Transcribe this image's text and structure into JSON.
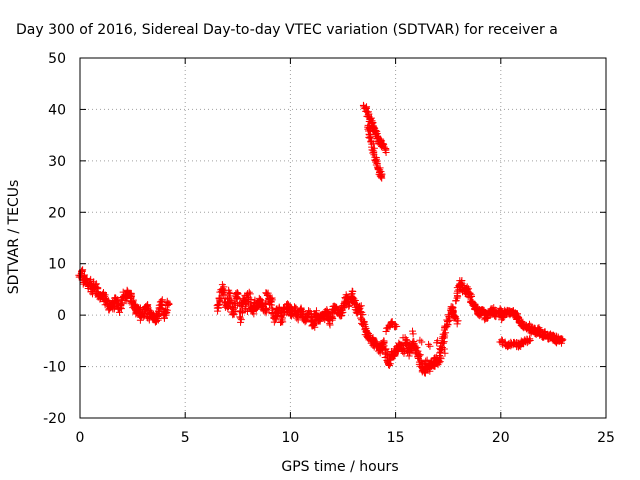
{
  "chart_data": {
    "type": "scatter",
    "title": "Day 300 of 2016, Sidereal Day-to-day VTEC variation (SDTVAR) for receiver a",
    "xlabel": "GPS time / hours",
    "ylabel": "SDTVAR / TECUs",
    "xlim": [
      0,
      25
    ],
    "ylim": [
      -20,
      50
    ],
    "x_ticks": [
      0,
      5,
      10,
      15,
      20,
      25
    ],
    "y_ticks": [
      -20,
      -10,
      0,
      10,
      20,
      30,
      40,
      50
    ],
    "grid": true,
    "marker": "+",
    "series_color": "#ff0000",
    "series": [
      {
        "segments": [
          {
            "points": [
              [
                0.0,
                7.5
              ],
              [
                0.1,
                8.5
              ],
              [
                0.2,
                6.5
              ],
              [
                0.3,
                7.0
              ],
              [
                0.4,
                5.5
              ],
              [
                0.5,
                6.5
              ],
              [
                0.6,
                4.5
              ],
              [
                0.7,
                6.0
              ],
              [
                0.8,
                5.0
              ],
              [
                0.9,
                4.0
              ],
              [
                1.0,
                3.5
              ],
              [
                1.1,
                4.5
              ],
              [
                1.2,
                2.5
              ],
              [
                1.3,
                3.0
              ],
              [
                1.4,
                1.0
              ],
              [
                1.5,
                2.0
              ],
              [
                1.6,
                1.5
              ],
              [
                1.7,
                3.5
              ],
              [
                1.8,
                2.0
              ],
              [
                1.9,
                1.0
              ],
              [
                2.0,
                2.5
              ],
              [
                2.1,
                4.0
              ],
              [
                2.2,
                3.0
              ],
              [
                2.3,
                4.5
              ],
              [
                2.4,
                4.0
              ],
              [
                2.5,
                2.5
              ],
              [
                2.6,
                1.5
              ],
              [
                2.7,
                0.5
              ],
              [
                2.8,
                1.5
              ],
              [
                2.9,
                -0.5
              ],
              [
                3.0,
                0.0
              ],
              [
                3.1,
                1.0
              ],
              [
                3.2,
                2.0
              ],
              [
                3.3,
                -1.0
              ],
              [
                3.4,
                0.5
              ],
              [
                3.5,
                -0.5
              ],
              [
                3.6,
                -1.0
              ],
              [
                3.7,
                0.0
              ],
              [
                3.8,
                1.5
              ],
              [
                3.9,
                2.5
              ],
              [
                4.0,
                -0.5
              ],
              [
                4.1,
                1.0
              ],
              [
                4.2,
                2.5
              ]
            ]
          },
          {
            "points": [
              [
                6.5,
                1.0
              ],
              [
                6.6,
                2.5
              ],
              [
                6.7,
                4.0
              ],
              [
                6.8,
                5.5
              ],
              [
                6.9,
                3.0
              ],
              [
                7.0,
                1.5
              ],
              [
                7.1,
                4.5
              ],
              [
                7.2,
                2.0
              ],
              [
                7.3,
                0.0
              ],
              [
                7.4,
                3.5
              ],
              [
                7.5,
                4.5
              ],
              [
                7.6,
                -1.0
              ],
              [
                7.7,
                2.0
              ],
              [
                7.8,
                3.5
              ],
              [
                7.9,
                1.0
              ],
              [
                8.0,
                4.5
              ],
              [
                8.1,
                1.5
              ],
              [
                8.2,
                0.5
              ],
              [
                8.3,
                2.5
              ],
              [
                8.4,
                1.0
              ],
              [
                8.5,
                3.0
              ],
              [
                8.6,
                2.0
              ],
              [
                8.7,
                1.5
              ],
              [
                8.8,
                0.5
              ],
              [
                8.9,
                4.5
              ],
              [
                9.0,
                2.5
              ],
              [
                9.1,
                3.5
              ],
              [
                9.2,
                0.0
              ],
              [
                9.3,
                -1.0
              ],
              [
                9.4,
                1.5
              ],
              [
                9.5,
                0.5
              ],
              [
                9.6,
                -1.5
              ],
              [
                9.7,
                1.5
              ],
              [
                9.8,
                0.5
              ],
              [
                9.9,
                2.0
              ],
              [
                10.0,
                1.0
              ],
              [
                10.1,
                0.0
              ],
              [
                10.2,
                1.5
              ],
              [
                10.3,
                -0.5
              ],
              [
                10.4,
                0.5
              ],
              [
                10.5,
                1.0
              ],
              [
                10.6,
                0.0
              ],
              [
                10.7,
                -1.0
              ],
              [
                10.8,
                -0.5
              ],
              [
                10.9,
                0.5
              ],
              [
                11.0,
                -1.5
              ],
              [
                11.1,
                -2.0
              ],
              [
                11.2,
                0.5
              ],
              [
                11.3,
                -0.5
              ],
              [
                11.4,
                -1.0
              ],
              [
                11.5,
                0.0
              ],
              [
                11.6,
                -0.5
              ],
              [
                11.7,
                1.0
              ],
              [
                11.8,
                0.0
              ],
              [
                11.9,
                -1.5
              ],
              [
                12.0,
                0.5
              ],
              [
                12.1,
                1.5
              ],
              [
                12.2,
                1.0
              ],
              [
                12.3,
                0.5
              ],
              [
                12.4,
                0.0
              ],
              [
                12.5,
                1.5
              ],
              [
                12.6,
                2.5
              ],
              [
                12.7,
                3.5
              ],
              [
                12.8,
                2.0
              ],
              [
                12.9,
                4.5
              ],
              [
                13.0,
                3.0
              ],
              [
                13.1,
                2.0
              ],
              [
                13.2,
                0.5
              ],
              [
                13.3,
                1.5
              ],
              [
                13.4,
                -1.0
              ],
              [
                13.5,
                -2.0
              ],
              [
                13.6,
                -3.5
              ],
              [
                13.7,
                -4.0
              ],
              [
                13.8,
                -5.0
              ],
              [
                13.9,
                -4.5
              ],
              [
                14.0,
                -6.0
              ],
              [
                14.1,
                -5.5
              ],
              [
                14.2,
                -6.5
              ],
              [
                14.3,
                -7.0
              ],
              [
                14.4,
                -5.0
              ],
              [
                14.5,
                -6.5
              ],
              [
                14.6,
                -8.5
              ],
              [
                14.7,
                -9.5
              ],
              [
                14.8,
                -7.5
              ],
              [
                14.9,
                -8.0
              ],
              [
                15.0,
                -6.5
              ],
              [
                15.1,
                -7.0
              ],
              [
                15.2,
                -5.5
              ],
              [
                15.3,
                -6.0
              ],
              [
                15.4,
                -7.0
              ],
              [
                15.5,
                -5.0
              ],
              [
                15.6,
                -6.5
              ],
              [
                15.7,
                -7.5
              ],
              [
                15.8,
                -5.5
              ],
              [
                15.9,
                -6.0
              ],
              [
                16.0,
                -7.0
              ],
              [
                16.1,
                -8.0
              ],
              [
                16.2,
                -9.5
              ],
              [
                16.3,
                -10.5
              ],
              [
                16.4,
                -11.0
              ],
              [
                16.5,
                -9.0
              ],
              [
                16.6,
                -10.5
              ],
              [
                16.7,
                -9.0
              ],
              [
                16.8,
                -10.0
              ],
              [
                16.9,
                -8.5
              ],
              [
                17.0,
                -9.5
              ],
              [
                17.1,
                -8.0
              ],
              [
                17.2,
                -6.0
              ],
              [
                17.3,
                -4.0
              ],
              [
                17.4,
                -2.5
              ],
              [
                17.5,
                -1.0
              ],
              [
                17.6,
                0.5
              ],
              [
                17.7,
                1.5
              ],
              [
                17.8,
                0.0
              ],
              [
                17.9,
                -1.5
              ]
            ]
          },
          {
            "points": [
              [
                14.6,
                -3.0
              ],
              [
                14.8,
                -1.5
              ],
              [
                15.0,
                -2.0
              ],
              [
                15.4,
                -4.5
              ],
              [
                15.8,
                -3.5
              ],
              [
                16.2,
                -5.0
              ],
              [
                16.6,
                -6.0
              ],
              [
                17.0,
                -5.0
              ],
              [
                17.3,
                -7.0
              ]
            ]
          },
          {
            "points": [
              [
                17.9,
                3.0
              ],
              [
                18.0,
                5.5
              ],
              [
                18.1,
                6.5
              ],
              [
                18.2,
                5.0
              ],
              [
                18.3,
                4.5
              ],
              [
                18.4,
                5.5
              ],
              [
                18.5,
                4.0
              ],
              [
                18.6,
                3.0
              ],
              [
                18.7,
                2.0
              ],
              [
                18.8,
                1.5
              ],
              [
                18.9,
                1.0
              ],
              [
                19.0,
                0.0
              ],
              [
                19.1,
                1.0
              ],
              [
                19.2,
                0.5
              ],
              [
                19.3,
                -0.5
              ],
              [
                19.4,
                0.0
              ],
              [
                19.5,
                0.5
              ],
              [
                19.6,
                1.0
              ],
              [
                19.7,
                0.0
              ],
              [
                19.8,
                0.5
              ],
              [
                19.9,
                0.5
              ],
              [
                20.0,
                1.0
              ],
              [
                20.1,
                -0.5
              ],
              [
                20.2,
                0.5
              ],
              [
                20.3,
                0.5
              ],
              [
                20.4,
                0.5
              ],
              [
                20.5,
                0.5
              ],
              [
                20.6,
                0.5
              ],
              [
                20.7,
                0.0
              ],
              [
                20.8,
                -0.5
              ],
              [
                20.9,
                -1.0
              ],
              [
                21.0,
                -1.5
              ],
              [
                21.1,
                -2.0
              ],
              [
                21.2,
                -2.5
              ],
              [
                21.3,
                -2.0
              ],
              [
                21.4,
                -3.0
              ],
              [
                21.5,
                -2.5
              ],
              [
                21.6,
                -3.0
              ],
              [
                21.7,
                -3.5
              ],
              [
                21.8,
                -2.5
              ],
              [
                21.9,
                -3.5
              ],
              [
                22.0,
                -4.0
              ],
              [
                22.1,
                -3.5
              ],
              [
                22.2,
                -4.0
              ],
              [
                22.3,
                -4.5
              ],
              [
                22.4,
                -4.0
              ],
              [
                22.5,
                -4.5
              ],
              [
                22.6,
                -5.0
              ],
              [
                22.7,
                -4.5
              ],
              [
                22.8,
                -5.0
              ],
              [
                22.9,
                -5.0
              ]
            ]
          },
          {
            "points": [
              [
                20.0,
                -5.0
              ],
              [
                20.2,
                -5.5
              ],
              [
                20.4,
                -6.0
              ],
              [
                20.6,
                -5.5
              ],
              [
                20.8,
                -6.0
              ],
              [
                21.0,
                -5.5
              ],
              [
                21.2,
                -5.0
              ],
              [
                21.4,
                -4.5
              ]
            ]
          },
          {
            "points": [
              [
                13.5,
                40.5
              ],
              [
                13.6,
                40.0
              ],
              [
                13.7,
                39.0
              ],
              [
                13.8,
                38.0
              ],
              [
                13.9,
                37.0
              ],
              [
                14.0,
                36.0
              ],
              [
                14.1,
                35.0
              ],
              [
                14.2,
                34.0
              ],
              [
                14.3,
                33.5
              ],
              [
                14.4,
                33.0
              ],
              [
                14.5,
                32.0
              ],
              [
                13.7,
                36.5
              ],
              [
                13.8,
                35.0
              ],
              [
                13.9,
                33.5
              ],
              [
                14.0,
                31.5
              ],
              [
                14.1,
                30.0
              ],
              [
                14.2,
                28.5
              ],
              [
                14.3,
                27.5
              ],
              [
                14.3,
                27.0
              ]
            ]
          }
        ]
      }
    ]
  }
}
